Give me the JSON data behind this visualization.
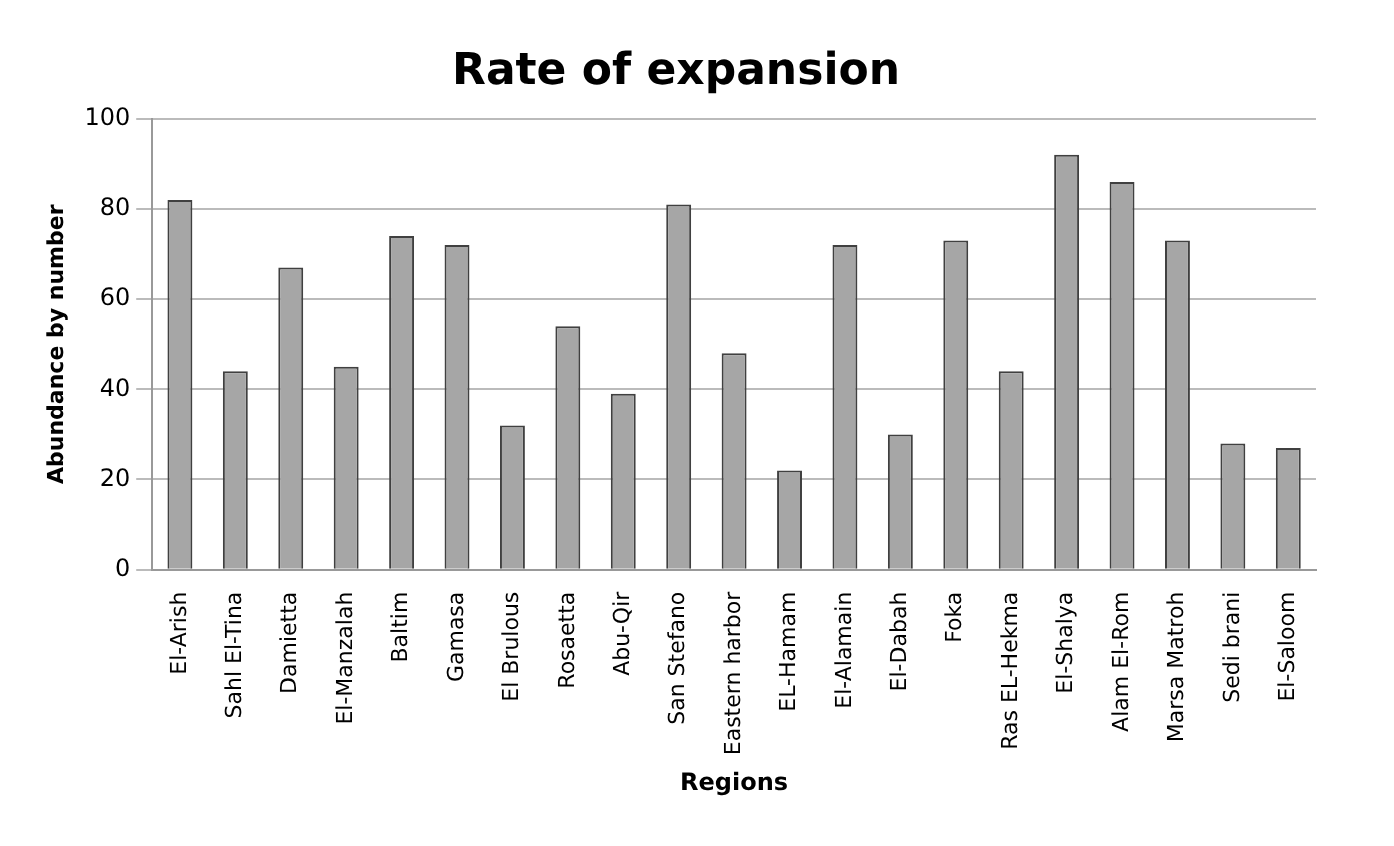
{
  "chart_data": {
    "type": "bar",
    "title": "Rate of expansion",
    "xlabel": "Regions",
    "ylabel": "Abundance by number",
    "categories": [
      "El-Arish",
      "Sahl El-Tina",
      "Damietta",
      "El-Manzalah",
      "Baltim",
      "Gamasa",
      "El Brulous",
      "Rosaetta",
      "Abu-Qir",
      "San Stefano",
      "Eastern harbor",
      "EL-Hamam",
      "El-Alamain",
      "El-Dabah",
      "Foka",
      "Ras EL-Hekma",
      "El-Shalya",
      "Alam El-Rom",
      "Marsa Matroh",
      "Sedi brani",
      "El-Saloom"
    ],
    "values": [
      82,
      44,
      67,
      45,
      74,
      72,
      32,
      54,
      39,
      81,
      48,
      22,
      72,
      30,
      73,
      44,
      92,
      86,
      73,
      28,
      27
    ],
    "color": "#a6a6a6",
    "ylim": [
      0,
      100
    ],
    "yticks": [
      0,
      20,
      40,
      60,
      80,
      100
    ],
    "grid": "y",
    "legend": false
  }
}
